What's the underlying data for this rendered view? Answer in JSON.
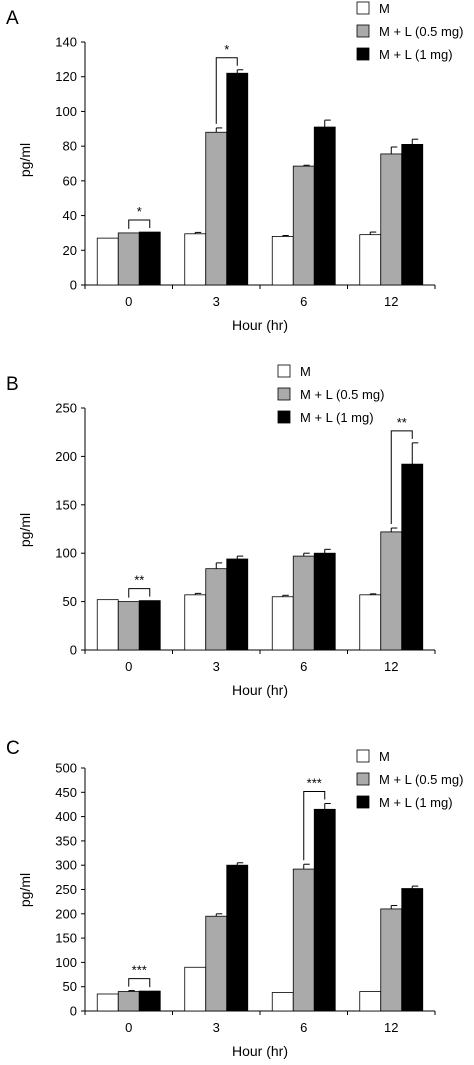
{
  "figure": {
    "panels": [
      {
        "letter": "A"
      },
      {
        "letter": "B"
      },
      {
        "letter": "C"
      }
    ]
  },
  "chart_data": [
    {
      "type": "bar",
      "panel": "A",
      "categories": [
        "0",
        "3",
        "6",
        "12"
      ],
      "xlabel": "Hour (hr)",
      "ylabel": "pg/ml",
      "ylim": [
        0,
        140
      ],
      "yticks": [
        0,
        20,
        40,
        60,
        80,
        100,
        120,
        140
      ],
      "legend_position": "top-right",
      "series": [
        {
          "name": "M",
          "color": "#ffffff",
          "values": [
            27,
            29.5,
            28,
            29
          ],
          "errors": [
            0,
            0.8,
            0.5,
            1.5
          ]
        },
        {
          "name": "M + L (0.5 mg)",
          "color": "#aaaaaa",
          "values": [
            30,
            88,
            68.5,
            75.5
          ],
          "errors": [
            0,
            2.5,
            0.5,
            4
          ]
        },
        {
          "name": "M + L (1 mg)",
          "color": "#000000",
          "values": [
            30.5,
            122,
            91,
            81
          ],
          "errors": [
            0,
            2,
            4,
            3
          ]
        }
      ],
      "significance": [
        {
          "category_index": 0,
          "label": "*"
        },
        {
          "category_index": 1,
          "label": "*"
        }
      ]
    },
    {
      "type": "bar",
      "panel": "B",
      "categories": [
        "0",
        "3",
        "6",
        "12"
      ],
      "xlabel": "Hour (hr)",
      "ylabel": "pg/ml",
      "ylim": [
        0,
        250
      ],
      "yticks": [
        0,
        50,
        100,
        150,
        200,
        250
      ],
      "legend_position": "top-right",
      "series": [
        {
          "name": "M",
          "color": "#ffffff",
          "values": [
            52,
            57,
            55,
            57
          ],
          "errors": [
            0,
            1.5,
            1.5,
            1
          ]
        },
        {
          "name": "M + L (0.5 mg)",
          "color": "#aaaaaa",
          "values": [
            50,
            84,
            97,
            122
          ],
          "errors": [
            0,
            6,
            3,
            4
          ]
        },
        {
          "name": "M + L (1 mg)",
          "color": "#000000",
          "values": [
            51,
            94,
            100,
            192
          ],
          "errors": [
            0,
            3,
            4,
            22
          ]
        }
      ],
      "significance": [
        {
          "category_index": 0,
          "label": "**"
        },
        {
          "category_index": 3,
          "label": "**"
        }
      ]
    },
    {
      "type": "bar",
      "panel": "C",
      "categories": [
        "0",
        "3",
        "6",
        "12"
      ],
      "xlabel": "Hour (hr)",
      "ylabel": "pg/ml",
      "ylim": [
        0,
        500
      ],
      "yticks": [
        0,
        50,
        100,
        150,
        200,
        250,
        300,
        350,
        400,
        450,
        500
      ],
      "legend_position": "top-right",
      "series": [
        {
          "name": "M",
          "color": "#ffffff",
          "values": [
            35,
            90,
            38,
            40
          ],
          "errors": [
            0,
            0,
            0,
            0
          ]
        },
        {
          "name": "M + L (0.5 mg)",
          "color": "#aaaaaa",
          "values": [
            40,
            195,
            292,
            210
          ],
          "errors": [
            2,
            5,
            10,
            7
          ]
        },
        {
          "name": "M + L (1 mg)",
          "color": "#000000",
          "values": [
            41,
            300,
            415,
            252
          ],
          "errors": [
            0,
            5,
            12,
            5
          ]
        }
      ],
      "significance": [
        {
          "category_index": 0,
          "label": "***"
        },
        {
          "category_index": 2,
          "label": "***"
        }
      ]
    }
  ]
}
